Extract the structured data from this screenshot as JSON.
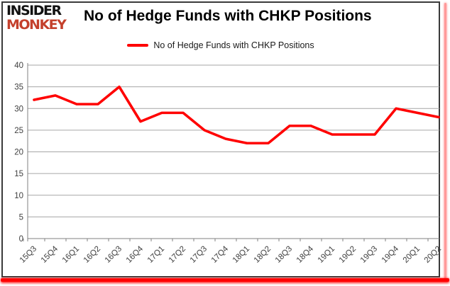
{
  "brand": {
    "name_line1": "INSIDER",
    "name_line2": "MONKEY",
    "accent_color": "#C4402C",
    "text_color": "#121212"
  },
  "header": {
    "title": "No of Hedge Funds with CHKP Positions"
  },
  "legend": {
    "label": "No of Hedge Funds with CHKP Positions",
    "swatch_color": "#FF0000"
  },
  "chart_data": {
    "type": "line",
    "title": "No of Hedge Funds with CHKP Positions",
    "categories": [
      "15Q3",
      "15Q4",
      "16Q1",
      "16Q2",
      "16Q3",
      "16Q4",
      "17Q1",
      "17Q2",
      "17Q3",
      "17Q4",
      "18Q1",
      "18Q2",
      "18Q3",
      "18Q4",
      "19Q1",
      "19Q2",
      "19Q3",
      "19Q4",
      "20Q1",
      "20Q2"
    ],
    "series": [
      {
        "name": "No of Hedge Funds with CHKP Positions",
        "color": "#FF0000",
        "values": [
          32,
          33,
          31,
          31,
          35,
          27,
          29,
          29,
          25,
          23,
          22,
          22,
          26,
          26,
          24,
          24,
          24,
          30,
          29,
          28
        ]
      }
    ],
    "xlabel": "",
    "ylabel": "",
    "ylim": [
      0,
      40
    ],
    "ytick_step": 5,
    "yticks": [
      0,
      5,
      10,
      15,
      20,
      25,
      30,
      35,
      40
    ],
    "grid": "horizontal",
    "gridline_color": "#A6A6A6",
    "axis_color": "#808080",
    "tick_label_color": "#404040",
    "legend_position": "top-center"
  }
}
